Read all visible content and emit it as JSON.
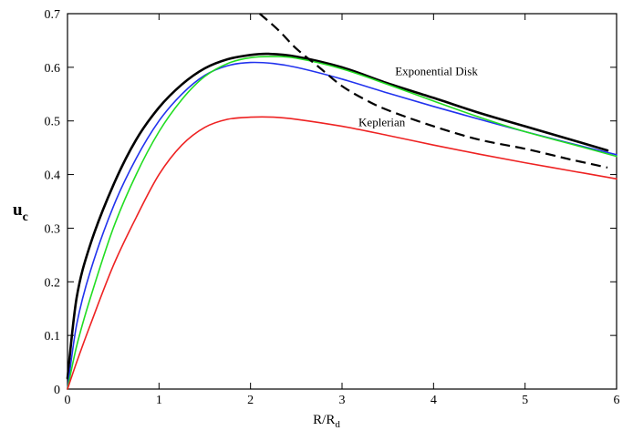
{
  "chart_data": {
    "type": "line",
    "title": "",
    "xlabel": "R/R",
    "xlabel_sub": "d",
    "ylabel": "u",
    "ylabel_sub": "c",
    "xlim": [
      0,
      6
    ],
    "ylim": [
      0,
      0.7
    ],
    "xticks": [
      "0",
      "1",
      "2",
      "3",
      "4",
      "5",
      "6"
    ],
    "yticks": [
      "0",
      "0.1",
      "0.2",
      "0.3",
      "0.4",
      "0.5",
      "0.6",
      "0.7"
    ],
    "grid": false,
    "legend": "none",
    "annotations": [
      {
        "text": "Exponential Disk",
        "x": 3.58,
        "y": 0.585
      },
      {
        "text": "Keplerian",
        "x": 3.18,
        "y": 0.49
      }
    ],
    "series": [
      {
        "name": "Exponential Disk",
        "color": "#000000",
        "dash": "solid",
        "width": 2.6,
        "x": [
          0,
          0.1,
          0.25,
          0.5,
          0.75,
          1.0,
          1.25,
          1.5,
          1.75,
          2.0,
          2.2,
          2.5,
          3.0,
          3.5,
          4.0,
          4.5,
          5.0,
          5.5,
          5.9
        ],
        "y": [
          0.02,
          0.17,
          0.27,
          0.38,
          0.465,
          0.525,
          0.568,
          0.598,
          0.615,
          0.623,
          0.625,
          0.62,
          0.6,
          0.57,
          0.543,
          0.515,
          0.49,
          0.465,
          0.445
        ]
      },
      {
        "name": "blue",
        "color": "#2233ee",
        "dash": "solid",
        "width": 1.6,
        "x": [
          0,
          0.1,
          0.25,
          0.5,
          0.75,
          1.0,
          1.25,
          1.5,
          1.75,
          2.0,
          2.25,
          2.5,
          3.0,
          3.5,
          4.0,
          4.5,
          5.0,
          5.5,
          6.0
        ],
        "y": [
          0.0,
          0.12,
          0.22,
          0.34,
          0.43,
          0.5,
          0.55,
          0.585,
          0.603,
          0.609,
          0.607,
          0.6,
          0.578,
          0.552,
          0.527,
          0.503,
          0.48,
          0.458,
          0.437
        ]
      },
      {
        "name": "green",
        "color": "#22dd22",
        "dash": "solid",
        "width": 1.6,
        "x": [
          0,
          0.1,
          0.25,
          0.5,
          0.75,
          1.0,
          1.25,
          1.5,
          1.75,
          2.0,
          2.25,
          2.5,
          3.0,
          3.5,
          4.0,
          4.5,
          5.0,
          5.5,
          6.0
        ],
        "y": [
          0.0,
          0.08,
          0.17,
          0.3,
          0.4,
          0.48,
          0.54,
          0.583,
          0.607,
          0.618,
          0.62,
          0.617,
          0.597,
          0.568,
          0.537,
          0.507,
          0.48,
          0.457,
          0.434
        ]
      },
      {
        "name": "Keplerian",
        "color": "#ee2222",
        "dash": "solid",
        "width": 1.6,
        "x": [
          0,
          0.1,
          0.25,
          0.5,
          0.75,
          1.0,
          1.25,
          1.5,
          1.75,
          2.0,
          2.25,
          2.5,
          3.0,
          3.5,
          4.0,
          4.5,
          5.0,
          5.5,
          6.0
        ],
        "y": [
          0.0,
          0.05,
          0.12,
          0.23,
          0.32,
          0.4,
          0.455,
          0.488,
          0.503,
          0.507,
          0.507,
          0.503,
          0.49,
          0.473,
          0.455,
          0.438,
          0.422,
          0.407,
          0.392
        ]
      },
      {
        "name": "Kepler dashed",
        "color": "#000000",
        "dash": "dashed",
        "width": 2.2,
        "x": [
          2.1,
          2.3,
          2.5,
          2.75,
          3.0,
          3.25,
          3.5,
          4.0,
          4.5,
          5.0,
          5.5,
          5.9
        ],
        "y": [
          0.7,
          0.67,
          0.635,
          0.6,
          0.565,
          0.54,
          0.52,
          0.49,
          0.465,
          0.448,
          0.428,
          0.413
        ]
      }
    ]
  }
}
